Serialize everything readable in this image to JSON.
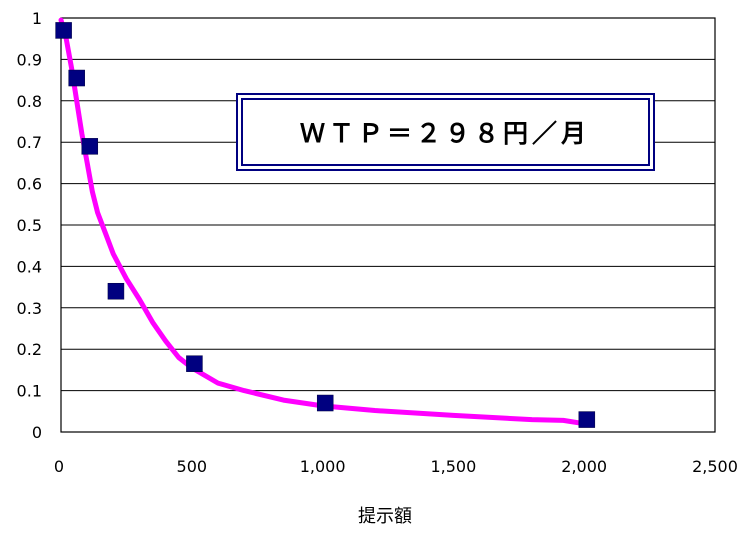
{
  "chart_data": {
    "type": "scatter",
    "title": "",
    "xlabel": "提示額",
    "ylabel": "",
    "xlim": [
      0,
      2500
    ],
    "ylim": [
      0,
      1
    ],
    "x_ticks": [
      0,
      500,
      1000,
      1500,
      2000,
      2500
    ],
    "x_tick_labels": [
      "0",
      "500",
      "1,000",
      "1,500",
      "2,000",
      "2,500"
    ],
    "y_ticks": [
      0,
      0.1,
      0.2,
      0.3,
      0.4,
      0.5,
      0.6,
      0.7,
      0.8,
      0.9,
      1
    ],
    "y_tick_labels": [
      "0",
      "0.1",
      "0.2",
      "0.3",
      "0.4",
      "0.5",
      "0.6",
      "0.7",
      "0.8",
      "0.9",
      "1"
    ],
    "grid": "horizontal",
    "series": [
      {
        "type": "scatter",
        "marker": "square",
        "color": "#000080",
        "points": [
          {
            "x": 10,
            "y": 0.97
          },
          {
            "x": 60,
            "y": 0.855
          },
          {
            "x": 110,
            "y": 0.69
          },
          {
            "x": 210,
            "y": 0.34
          },
          {
            "x": 510,
            "y": 0.165
          },
          {
            "x": 1010,
            "y": 0.07
          },
          {
            "x": 2010,
            "y": 0.03
          }
        ]
      },
      {
        "type": "line",
        "color": "#ff00ff",
        "points": [
          {
            "x": 0,
            "y": 0.995
          },
          {
            "x": 20,
            "y": 0.95
          },
          {
            "x": 40,
            "y": 0.88
          },
          {
            "x": 60,
            "y": 0.8
          },
          {
            "x": 80,
            "y": 0.72
          },
          {
            "x": 100,
            "y": 0.65
          },
          {
            "x": 120,
            "y": 0.58
          },
          {
            "x": 140,
            "y": 0.53
          },
          {
            "x": 170,
            "y": 0.48
          },
          {
            "x": 200,
            "y": 0.43
          },
          {
            "x": 250,
            "y": 0.37
          },
          {
            "x": 300,
            "y": 0.32
          },
          {
            "x": 350,
            "y": 0.265
          },
          {
            "x": 400,
            "y": 0.22
          },
          {
            "x": 450,
            "y": 0.18
          },
          {
            "x": 500,
            "y": 0.155
          },
          {
            "x": 600,
            "y": 0.118
          },
          {
            "x": 700,
            "y": 0.1
          },
          {
            "x": 850,
            "y": 0.077
          },
          {
            "x": 1000,
            "y": 0.063
          },
          {
            "x": 1200,
            "y": 0.052
          },
          {
            "x": 1500,
            "y": 0.04
          },
          {
            "x": 1800,
            "y": 0.03
          },
          {
            "x": 1920,
            "y": 0.028
          },
          {
            "x": 2000,
            "y": 0.02
          }
        ]
      }
    ],
    "annotations": [
      {
        "text": "ＷＴＰ＝２９８円／月",
        "box": "double-border"
      }
    ]
  }
}
